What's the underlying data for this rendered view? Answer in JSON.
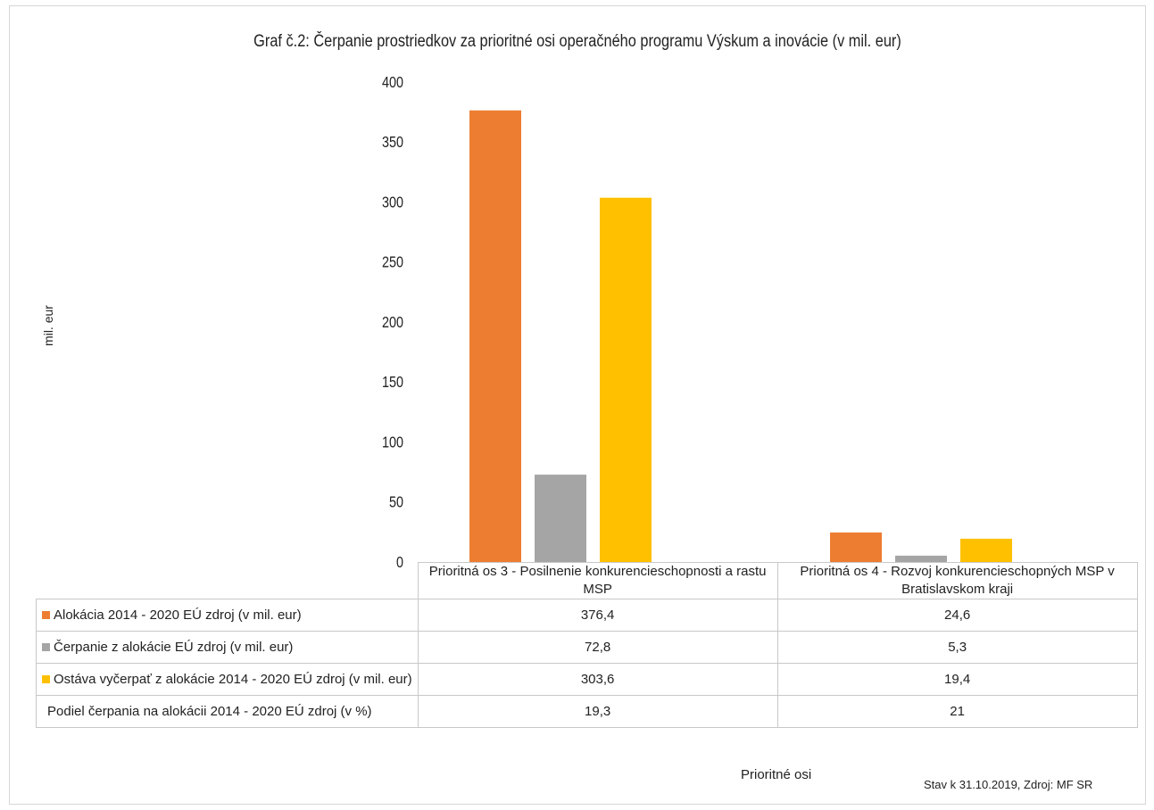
{
  "chart_data": {
    "type": "bar",
    "title": "Graf č.2: Čerpanie prostriedkov za prioritné osi operačného programu Výskum a inovácie (v mil. eur)",
    "ylabel": "mil. eur",
    "xlabel": "Prioritné osi",
    "ylim": [
      0,
      400
    ],
    "yticks": [
      "0",
      "50",
      "100",
      "150",
      "200",
      "250",
      "300",
      "350",
      "400"
    ],
    "categories": [
      "Prioritná os 3 - Posilnenie konkurencieschopnosti a rastu MSP",
      "Prioritná os 4 - Rozvoj konkurencieschopných MSP v Bratislavskom kraji"
    ],
    "series": [
      {
        "name": "Alokácia 2014 - 2020 EÚ zdroj (v mil. eur)",
        "color": "#ED7D31",
        "values": [
          376.4,
          24.6
        ],
        "labels": [
          "376,4",
          "24,6"
        ]
      },
      {
        "name": "Čerpanie z alokácie EÚ zdroj (v mil. eur)",
        "color": "#A5A5A5",
        "values": [
          72.8,
          5.3
        ],
        "labels": [
          "72,8",
          "5,3"
        ]
      },
      {
        "name": "Ostáva vyčerpať z alokácie 2014 - 2020 EÚ zdroj (v mil. eur)",
        "color": "#FFC000",
        "values": [
          303.6,
          19.4
        ],
        "labels": [
          "303,6",
          "19,4"
        ]
      }
    ],
    "table_extra_row": {
      "name": "Podiel čerpania na alokácii 2014 - 2020 EÚ zdroj (v %)",
      "labels": [
        "19,3",
        "21"
      ]
    },
    "grid": false,
    "legend": "data table"
  },
  "source_note": "Stav k 31.10.2019, Zdroj: MF SR"
}
